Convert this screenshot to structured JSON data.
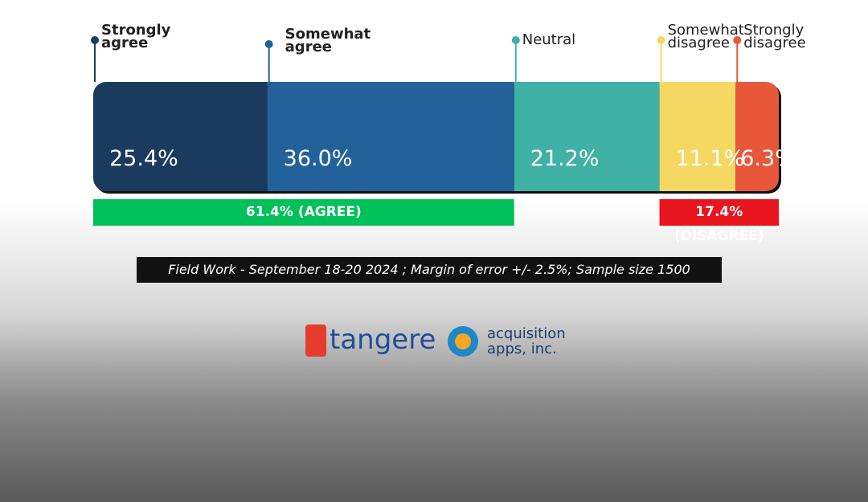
{
  "chart_data": {
    "type": "stacked-bar",
    "series": [
      {
        "name": "Strongly agree",
        "color": "#1b3b5e",
        "values": [
          25.4
        ],
        "value_labels": [
          "25.4%"
        ]
      },
      {
        "name": "Somewhat agree",
        "color": "#22619a",
        "values": [
          36.0
        ],
        "value_labels": [
          "36.0%"
        ]
      },
      {
        "name": "Neutral",
        "color": "#3fb1a5",
        "values": [
          21.2
        ],
        "value_labels": [
          "21.2%"
        ]
      },
      {
        "name": "Somewhat disagree",
        "color": "#f4d862",
        "values": [
          11.1
        ],
        "value_labels": [
          "11.1%"
        ]
      },
      {
        "name": "Strongly disagree",
        "color": "#e9573b",
        "values": [
          6.3
        ],
        "value_labels": [
          "6.3%"
        ]
      }
    ],
    "xlim": [
      0,
      100
    ],
    "groups": [
      {
        "label": "61.4% (AGREE)",
        "value": 61.4,
        "color": "#00c05a",
        "align": "start"
      },
      {
        "label": "17.4% (DISAGREE)",
        "value": 17.4,
        "color": "#e8141e",
        "align": "end"
      }
    ],
    "note": "Field Work - September 18-20 2024 ; Margin of error +/- 2.5%; Sample size 1500"
  },
  "logos": [
    "tangere",
    "acquisition apps, inc."
  ]
}
